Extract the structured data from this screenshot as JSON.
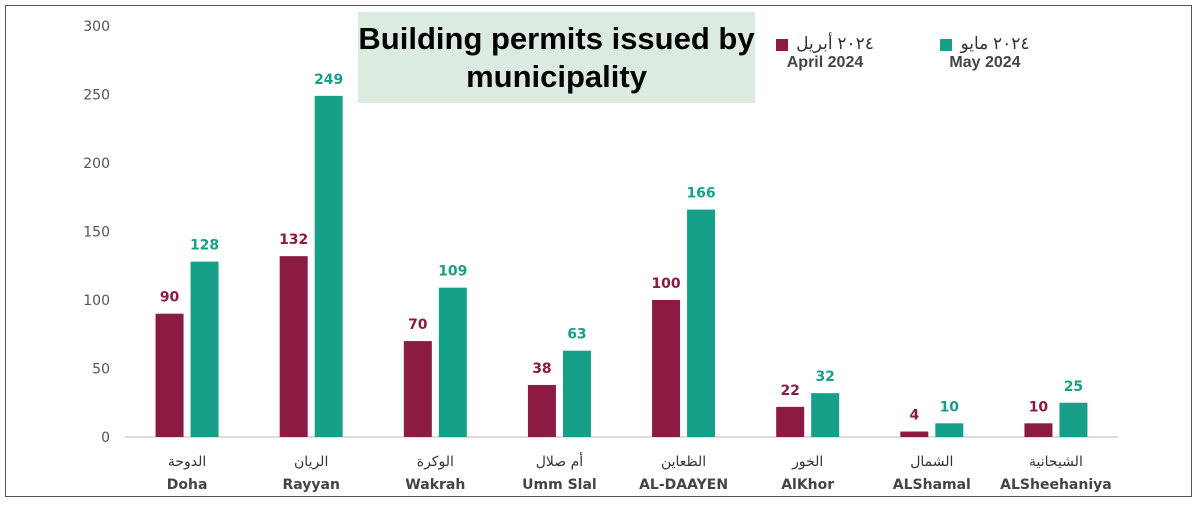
{
  "chart_data": {
    "type": "bar",
    "title": "Building permits issued by municipality",
    "categories": [
      {
        "ar": "الدوحة",
        "en": "Doha"
      },
      {
        "ar": "الريان",
        "en": "Rayyan"
      },
      {
        "ar": "الوكرة",
        "en": "Wakrah"
      },
      {
        "ar": "أم صلال",
        "en": "Umm Slal"
      },
      {
        "ar": "الظعاين",
        "en": "AL-DAAYEN"
      },
      {
        "ar": "الخور",
        "en": "AlKhor"
      },
      {
        "ar": "الشمال",
        "en": "ALShamal"
      },
      {
        "ar": "الشيحانية",
        "en": "ALSheehaniya"
      }
    ],
    "series": [
      {
        "name": "April 2024",
        "name_ar": "٢٠٢٤ أبريل",
        "color": "#8b1a45",
        "values": [
          90,
          132,
          70,
          38,
          100,
          22,
          4,
          10
        ]
      },
      {
        "name": "May 2024",
        "name_ar": "٢٠٢٤ مايو",
        "color": "#16a08a",
        "values": [
          128,
          249,
          109,
          63,
          166,
          32,
          10,
          25
        ]
      }
    ],
    "ylim": [
      0,
      300
    ],
    "yticks": [
      0,
      50,
      100,
      150,
      200,
      250,
      300
    ],
    "grid": false,
    "legend": "top-right"
  }
}
